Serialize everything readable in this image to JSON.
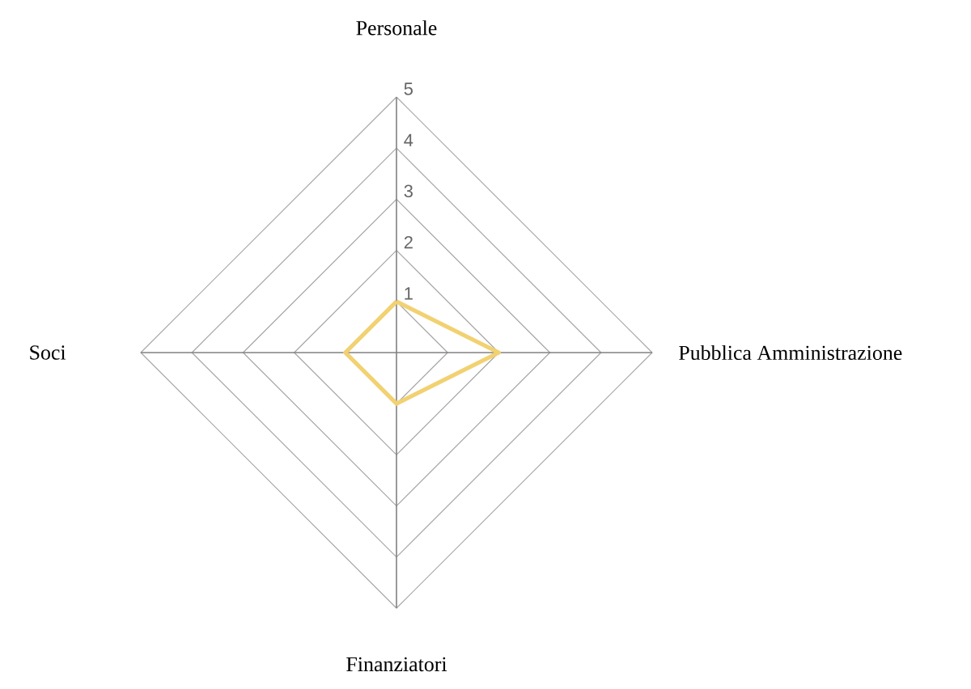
{
  "chart_data": {
    "type": "radar",
    "categories": [
      "Personale",
      "Pubblica Amministrazione",
      "Finanziatori",
      "Soci"
    ],
    "series": [
      {
        "color": "#f2d172",
        "values": [
          1,
          2,
          1,
          1
        ]
      }
    ],
    "ylim": [
      0,
      5
    ],
    "yticks": [
      1,
      2,
      3,
      4,
      5
    ],
    "grid": true
  }
}
